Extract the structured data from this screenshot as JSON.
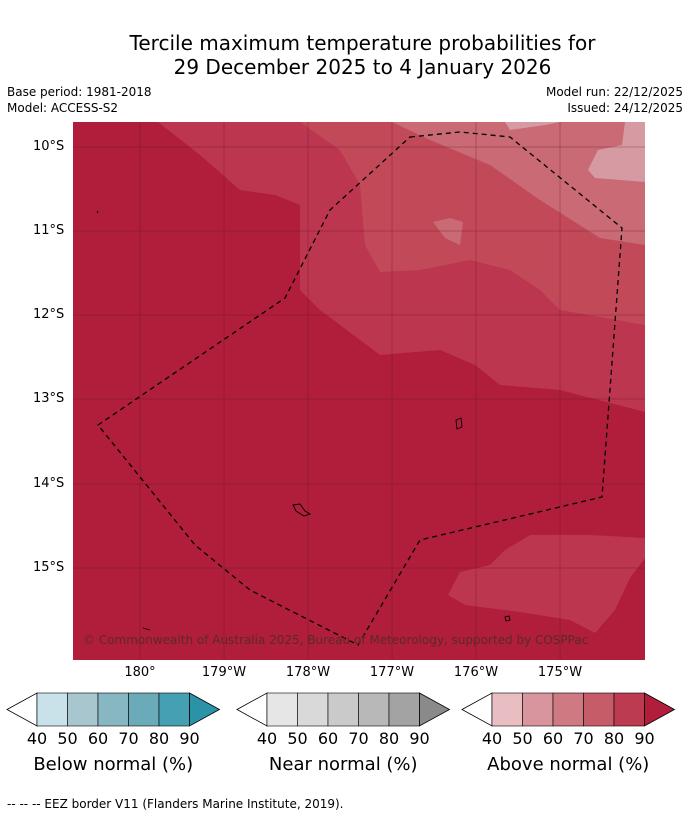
{
  "title_line1": "Tercile maximum temperature probabilities for",
  "title_line2": "29 December 2025 to 4 January 2026",
  "base_period": "Base period: 1981-2018",
  "model": "Model: ACCESS-S2",
  "model_run": "Model run: 22/12/2025",
  "issued": "Issued: 24/12/2025",
  "copyright": "© Commonwealth of Australia 2025, Bureau of Meteorology, supported by COSPPac",
  "lat_labels": [
    "10°S",
    "11°S",
    "12°S",
    "13°S",
    "14°S",
    "15°S"
  ],
  "lon_labels": [
    "180°",
    "179°W",
    "178°W",
    "177°W",
    "176°W",
    "175°W"
  ],
  "colorbars": [
    {
      "label": "Below normal (%)",
      "ticks": [
        "40",
        "50",
        "60",
        "70",
        "80",
        "90"
      ],
      "colors": [
        "#ffffff",
        "#c9e1e8",
        "#a7c6cd",
        "#88b7c4",
        "#6aaab9",
        "#44a0b2",
        "#2b93a8"
      ]
    },
    {
      "label": "Near normal (%)",
      "ticks": [
        "40",
        "50",
        "60",
        "70",
        "80",
        "90"
      ],
      "colors": [
        "#ffffff",
        "#e6e6e6",
        "#d9d9d9",
        "#cacaca",
        "#b8b8b8",
        "#a3a3a3",
        "#8a8a8a"
      ]
    },
    {
      "label": "Above normal (%)",
      "ticks": [
        "40",
        "50",
        "60",
        "70",
        "80",
        "90"
      ],
      "colors": [
        "#ffffff",
        "#e8bec3",
        "#d9959e",
        "#cf7982",
        "#c75c69",
        "#bd3b50",
        "#b01e3c"
      ]
    }
  ],
  "footnote": "-- -- -- EEZ border V11 (Flanders Marine Institute, 2019).",
  "map_colors": {
    "c80": "#b01e3c",
    "c70": "#bc3650",
    "c60": "#c24a58",
    "c50": "#c96a75",
    "c40": "#d69aa2"
  }
}
